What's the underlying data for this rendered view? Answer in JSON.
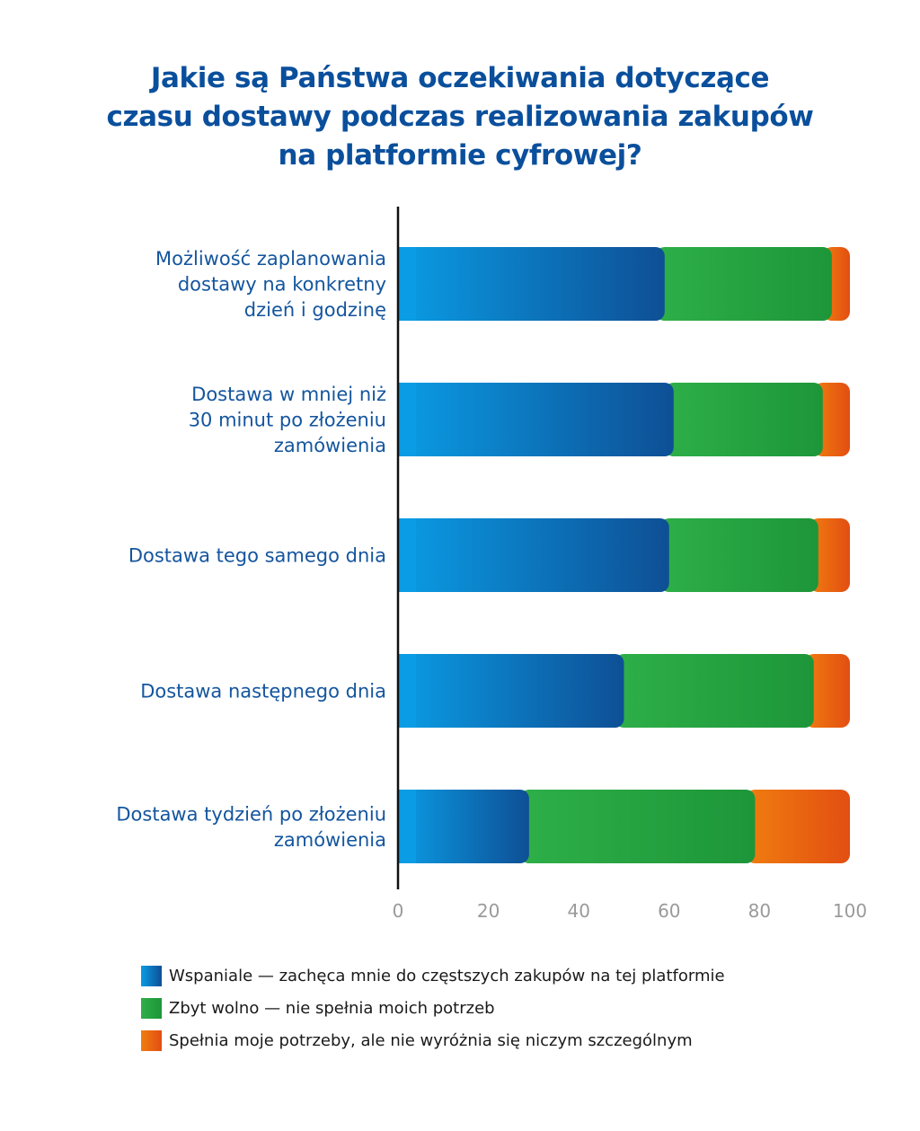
{
  "chart_data": {
    "type": "bar",
    "orientation": "horizontal",
    "stacked": true,
    "title_lines": [
      "Jakie są Państwa oczekiwania dotyczące",
      "czasu dostawy podczas realizowania zakupów",
      "na platformie cyfrowej?"
    ],
    "categories": [
      [
        "Możliwość zaplanowania",
        "dostawy na konkretny",
        "dzień i godzinę"
      ],
      [
        "Dostawa w mniej niż",
        "30 minut po złożeniu",
        "zamówienia"
      ],
      [
        "Dostawa tego samego dnia"
      ],
      [
        "Dostawa następnego dnia"
      ],
      [
        "Dostawa tydzień po złożeniu",
        "zamówienia"
      ]
    ],
    "series": [
      {
        "name": "Wspaniale — zachęca mnie do częstszych zakupów na tej platformie",
        "values": [
          59,
          61,
          60,
          50,
          29
        ],
        "color_light": "#0a9ce4",
        "color_dark": "#0e4f95"
      },
      {
        "name": "Zbyt wolno — nie spełnia moich potrzeb",
        "values": [
          37,
          33,
          33,
          42,
          50
        ],
        "color_light": "#2eaf48",
        "color_dark": "#1d9639"
      },
      {
        "name": "Spełnia moje potrzeby, ale nie wyróżnia się niczym szczególnym",
        "values": [
          4,
          6,
          7,
          8,
          21
        ],
        "color_light": "#f07d0f",
        "color_dark": "#e24e12"
      }
    ],
    "xlim": [
      0,
      100
    ],
    "xticks": [
      "0",
      "20",
      "40",
      "60",
      "80",
      "100"
    ],
    "grid": false,
    "legend_position": "bottom"
  }
}
